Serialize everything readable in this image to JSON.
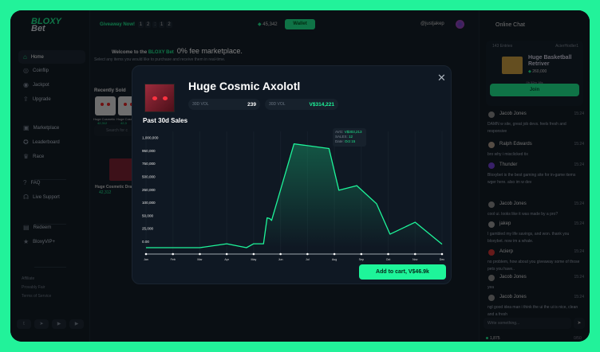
{
  "brand": {
    "line1": "BLOXY",
    "line2": "Bet",
    "accent": "#1ee58c"
  },
  "sidebar": {
    "items": [
      {
        "label": "Home",
        "icon": "home-icon",
        "active": true
      },
      {
        "label": "Coinflip",
        "icon": "coin-icon"
      },
      {
        "label": "Jackpot",
        "icon": "jackpot-icon"
      },
      {
        "label": "Upgrade",
        "icon": "upgrade-icon"
      },
      {
        "label": "Marketplace",
        "icon": "shop-icon"
      },
      {
        "label": "Leaderboard",
        "icon": "medal-icon"
      },
      {
        "label": "Race",
        "icon": "trophy-icon"
      },
      {
        "label": "FAQ",
        "icon": "faq-icon"
      },
      {
        "label": "Live Support",
        "icon": "headset-icon"
      },
      {
        "label": "Redeem",
        "icon": "gift-icon"
      },
      {
        "label": "BloxyVIP+",
        "icon": "star-icon"
      }
    ],
    "footer_links": [
      "Affiliate",
      "Provably Fair",
      "Terms of Service"
    ],
    "social": [
      "twitter-icon",
      "telegram-icon",
      "youtube-icon",
      "youtube-icon"
    ]
  },
  "topbar": {
    "giveaway": "Giveaway Now!",
    "countdown": [
      "1",
      "2",
      ":",
      "1",
      "2"
    ],
    "balance": "45,342",
    "wallet": "Wallet",
    "username": "@justjakep"
  },
  "hero": {
    "welcome": "Welcome to the",
    "brand": "BLOXY Bet",
    "tagline": "0% fee marketplace.",
    "subtitle": "Select any items you would like to purchase and receive them in real-time."
  },
  "recent": {
    "title": "Recently Sold",
    "items": [
      {
        "name": "Huge Cosmetic",
        "price": "42,312"
      },
      {
        "name": "Huge Cosmetic",
        "price": "42,3"
      }
    ]
  },
  "search": {
    "placeholder": "Search for c"
  },
  "listing": {
    "name": "Huge Cosmetic Drag",
    "price": "42,312"
  },
  "modal": {
    "title": "Huge Cosmic Axolotl",
    "vol1_label": "30D VOL",
    "vol1_value": "239",
    "vol2_label": "30D VOL",
    "vol2_value": "V$314,221",
    "section": "Past 30d Sales",
    "cart": "Add to cart, V$46.9k",
    "tooltip": {
      "avg_label": "AVG:",
      "avg": "V$303,213",
      "sales_label": "SALES:",
      "sales": "12",
      "date_label": "Date:",
      "date": "Oct 15"
    }
  },
  "chart_data": {
    "type": "area",
    "title": "Past 30d Sales",
    "y_ticks": [
      "1,000,000",
      "950,000",
      "750,000",
      "500,000",
      "250,000",
      "100,000",
      "50,000",
      "25,000",
      "0.00"
    ],
    "y_tick_values": [
      1000000,
      950000,
      750000,
      500000,
      250000,
      100000,
      50000,
      25000,
      0
    ],
    "x_ticks": [
      "Jan",
      "Feb",
      "Mar",
      "Apr",
      "May",
      "Jun",
      "Jul",
      "Aug",
      "Sep",
      "Oct",
      "Nov",
      "Dec"
    ],
    "points": [
      [
        "Jan 1",
        0
      ],
      [
        "Mar 1",
        0
      ],
      [
        "Apr 1",
        7500
      ],
      [
        "Apr 23",
        0
      ],
      [
        "May 1",
        7500
      ],
      [
        "May 12",
        7500
      ],
      [
        "May 16",
        65000
      ],
      [
        "May 19",
        62000
      ],
      [
        "May 21",
        55000
      ],
      [
        "Jun 16",
        1000000
      ],
      [
        "Jul 25",
        982000
      ],
      [
        "Aug 6",
        357000
      ],
      [
        "Aug 26",
        445000
      ],
      [
        "Sep 18",
        158000
      ],
      [
        "Oct 3",
        26000
      ],
      [
        "Oct 31",
        49000
      ],
      [
        "Dec 1",
        6700
      ]
    ],
    "line_color": "#1ef59a",
    "grid": "vertical"
  },
  "chat": {
    "title": "Online Chat",
    "raffle": {
      "entries": "143 Entries",
      "host": "AcierHodler1",
      "item": "Huge Basketball Retriver",
      "price": "260,000",
      "timer": "0h 52m 18s",
      "join": "Join"
    },
    "messages": [
      {
        "user": "Jacob Jones",
        "time": "15:24",
        "text": "DAMN w site, great job devs. feels fresh and responsive"
      },
      {
        "user": "Ralph Edwards",
        "time": "15:24",
        "text": "bro why i misclicked tix"
      },
      {
        "user": "Thunder",
        "time": "15:24",
        "text": "Bloxybet is the best gaming site for in-game items wger here. also im w dev"
      },
      {
        "user": "Jacob Jones",
        "time": "15:24",
        "text": "cool ui. looks like it was made by a pro?"
      },
      {
        "user": "jakep",
        "time": "15:24",
        "text": "I gambled my life savings, and won. thank you bloxybet. now im a whale."
      },
      {
        "user": "Acierp",
        "time": "15:24",
        "text": "no problem, how about you giveaway some of those pets you have.."
      },
      {
        "user": "Jacob Jones",
        "time": "15:24",
        "text": "yea"
      },
      {
        "user": "Jacob Jones",
        "time": "15:24",
        "text": "ngl good idea man i think the ui the ui is nice, clean and a fresh"
      }
    ],
    "input_placeholder": "Write something...",
    "online": "1,875",
    "char_count": "0/50"
  }
}
